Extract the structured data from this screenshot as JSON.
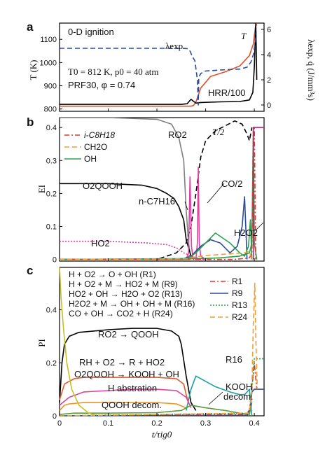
{
  "chart_data": [
    {
      "panel": "a",
      "type": "line",
      "ylabel": "T (K)",
      "ylabel_right": "λexp, q̇ (J/mm³s)",
      "ylim": [
        790,
        1170
      ],
      "y2lim": [
        -0.5,
        6.5
      ],
      "xlim": [
        0,
        0.42
      ],
      "yticks": [
        "800",
        "900",
        "1000",
        "1100"
      ],
      "y2ticks": [
        "0",
        "2",
        "4",
        "6"
      ],
      "annotations": {
        "title_note": "0-D ignition",
        "cond1": "T0 = 812 K, p0 = 40 atm",
        "cond2": "PRF30, φ = 0.74",
        "lambda": "λexp",
        "T": "T",
        "hrr": "HRR/100"
      },
      "series": [
        {
          "key": "T",
          "color": "#e0522a",
          "style": "solid",
          "axis": "left",
          "x": [
            0,
            0.24,
            0.27,
            0.275,
            0.28,
            0.29,
            0.31,
            0.34,
            0.37,
            0.39,
            0.398,
            0.402,
            0.405
          ],
          "y": [
            812,
            812,
            812,
            815,
            830,
            890,
            940,
            960,
            985,
            1030,
            1080,
            1150,
            1170
          ]
        },
        {
          "key": "HRR/100",
          "color": "#000000",
          "style": "solid",
          "axis": "right",
          "x": [
            0,
            0.25,
            0.262,
            0.27,
            0.275,
            0.28,
            0.29,
            0.33,
            0.37,
            0.39,
            0.397,
            0.4,
            0.403,
            0.405
          ],
          "y": [
            0.05,
            0.05,
            0.1,
            0.45,
            0.3,
            0.15,
            0.2,
            0.25,
            0.28,
            0.4,
            1.0,
            3.0,
            6.5,
            2.0
          ]
        },
        {
          "key": "λexp",
          "color": "#2b4b9b",
          "style": "dashed",
          "axis": "right",
          "x": [
            0,
            0.25,
            0.262,
            0.266,
            0.269,
            0.272,
            0.278,
            0.283,
            0.285,
            0.286,
            0.29,
            0.3,
            0.34,
            0.37,
            0.385,
            0.393,
            0.398,
            0.402,
            0.404
          ],
          "y": [
            4.5,
            4.5,
            4.48,
            4.4,
            4.2,
            3.9,
            3.5,
            2.0,
            0.0,
            2.2,
            2.5,
            2.7,
            2.8,
            2.85,
            3.0,
            3.4,
            4.0,
            5.0,
            5.8
          ]
        }
      ]
    },
    {
      "panel": "b",
      "type": "line",
      "ylabel": "EI",
      "ylim": [
        -0.005,
        0.43
      ],
      "xlim": [
        0,
        0.42
      ],
      "yticks": [
        "0",
        "0.1",
        "0.2",
        "0.3",
        "0.4"
      ],
      "legend": [
        "i-C8H18",
        "CH2O",
        "OH"
      ],
      "annotations": {
        "ro2": "RO2",
        "t2": "T/2",
        "o2qooh": "O2QOOH",
        "co2": "CO/2",
        "nc7": "n-C7H16",
        "h2o2": "H2O2",
        "ho2": "HO2"
      },
      "series": [
        {
          "key": "RO2",
          "color": "#808080",
          "style": "solid",
          "x": [
            0,
            0.1,
            0.2,
            0.23,
            0.245,
            0.255,
            0.26,
            0.265,
            0.27
          ],
          "y": [
            0.43,
            0.43,
            0.425,
            0.41,
            0.37,
            0.3,
            0.15,
            0.05,
            0.0
          ]
        },
        {
          "key": "O2QOOH",
          "color": "#000000",
          "style": "solid",
          "x": [
            0,
            0.1,
            0.17,
            0.2,
            0.22,
            0.235,
            0.245,
            0.255,
            0.26,
            0.27,
            0.28
          ],
          "y": [
            0.23,
            0.23,
            0.225,
            0.215,
            0.2,
            0.185,
            0.16,
            0.12,
            0.06,
            0.01,
            0.0
          ]
        },
        {
          "key": "T/2",
          "color": "#000000",
          "style": "dashed",
          "x": [
            0,
            0.2,
            0.24,
            0.26,
            0.27,
            0.28,
            0.29,
            0.3,
            0.32,
            0.34,
            0.36,
            0.375,
            0.385,
            0.39,
            0.395
          ],
          "y": [
            0,
            0,
            0.02,
            0.05,
            0.1,
            0.2,
            0.31,
            0.36,
            0.39,
            0.405,
            0.42,
            0.41,
            0.38,
            0.36,
            0.4
          ]
        },
        {
          "key": "HO2",
          "color": "#e040a0",
          "style": "dotted",
          "x": [
            0,
            0.1,
            0.18,
            0.22,
            0.24,
            0.255,
            0.27,
            0.285,
            0.3
          ],
          "y": [
            0.055,
            0.055,
            0.05,
            0.045,
            0.035,
            0.02,
            0.01,
            0.003,
            0
          ]
        },
        {
          "key": "CO/2",
          "color": "#e040a0",
          "style": "solid",
          "x": [
            0,
            0.26,
            0.265,
            0.268,
            0.271,
            0.274,
            0.28,
            0.283,
            0.285,
            0.287,
            0.29,
            0.3
          ],
          "y": [
            0,
            0,
            0.02,
            0.25,
            0.04,
            0.005,
            0,
            0.05,
            0.28,
            0.05,
            0.01,
            0
          ]
        },
        {
          "key": "n-C7H16",
          "color": "#2b4b9b",
          "style": "solid",
          "x": [
            0,
            0.25,
            0.27,
            0.29,
            0.31,
            0.33,
            0.35,
            0.365,
            0.375,
            0.38,
            0.385
          ],
          "y": [
            0,
            0,
            0.01,
            0.04,
            0.06,
            0.05,
            0.02,
            0.04,
            0.1,
            0.19,
            0.0
          ]
        },
        {
          "key": "H2O2",
          "color": "#2aa050",
          "style": "solid",
          "x": [
            0,
            0.26,
            0.28,
            0.3,
            0.32,
            0.35,
            0.37,
            0.38,
            0.388,
            0.392,
            0.395
          ],
          "y": [
            0,
            0,
            0.02,
            0.05,
            0.08,
            0.05,
            0.02,
            0.01,
            0.04,
            0.12,
            0.0
          ]
        },
        {
          "key": "OH",
          "color": "#2aa050",
          "style": "solid",
          "x": [
            0,
            0.3,
            0.33,
            0.37,
            0.39,
            0.395,
            0.398,
            0.4,
            0.405
          ],
          "y": [
            0,
            0.003,
            0.005,
            0.01,
            0.02,
            0.05,
            0.4,
            0.05,
            0
          ]
        },
        {
          "key": "i-C8H18",
          "color": "#e03a2a",
          "style": "dashdot",
          "x": [
            0,
            0.36,
            0.39,
            0.395,
            0.398,
            0.4,
            0.403
          ],
          "y": [
            0,
            0,
            0.005,
            0.02,
            0.4,
            0.4,
            0
          ]
        },
        {
          "key": "CH2O",
          "color": "#f0a030",
          "style": "dashed",
          "x": [
            0,
            0.26,
            0.28,
            0.3,
            0.33,
            0.36,
            0.38,
            0.39,
            0.395
          ],
          "y": [
            0,
            0.002,
            0.008,
            0.012,
            0.015,
            0.018,
            0.02,
            0.025,
            0
          ]
        },
        {
          "key": "step",
          "color": "#c02080",
          "style": "solid",
          "x": [
            0.398,
            0.398,
            0.42
          ],
          "y": [
            0,
            0.4,
            0.4
          ]
        }
      ]
    },
    {
      "panel": "c",
      "type": "line",
      "ylabel": "PI",
      "xlabel": "t/τig0",
      "ylim": [
        0,
        0.56
      ],
      "xlim": [
        0,
        0.42
      ],
      "yticks": [
        "0",
        "0.2",
        "0.4"
      ],
      "xticks": [
        "0",
        "0.1",
        "0.2",
        "0.3",
        "0.4"
      ],
      "xtick_values": [
        0,
        0.1,
        0.2,
        0.3,
        0.4
      ],
      "reactions": [
        "H + O2 → O + OH (R1)",
        "H + O2 + M → HO2 + M (R9)",
        "HO2 + OH → H2O + O2 (R13)",
        "H2O2 + M → OH + OH + M (R16)",
        "CO + OH → CO2 + H (R24)"
      ],
      "legend": [
        "R1",
        "R9",
        "R13",
        "R24"
      ],
      "annotations": {
        "ro2qooh": "RO2 → QOOH",
        "rh": "RH + O2 → R + HO2",
        "o2qooh": "O2QOOH → KOOH + OH",
        "habs": "H abstration",
        "qooh": "QOOH decom.",
        "r16": "R16",
        "kooh1": "KOOH",
        "kooh2": "decom."
      },
      "series": [
        {
          "key": "RO2→QOOH",
          "color": "#000000",
          "style": "solid",
          "x": [
            0,
            0.005,
            0.01,
            0.02,
            0.04,
            0.07,
            0.1,
            0.15,
            0.2,
            0.23,
            0.245,
            0.25,
            0.26,
            0.27,
            0.28
          ],
          "y": [
            0.05,
            0.2,
            0.27,
            0.3,
            0.315,
            0.32,
            0.325,
            0.33,
            0.33,
            0.32,
            0.3,
            0.27,
            0.15,
            0.05,
            0.02
          ]
        },
        {
          "key": "R16",
          "color": "#1aa0a0",
          "style": "solid",
          "x": [
            0.26,
            0.27,
            0.28,
            0.3,
            0.32,
            0.35,
            0.37,
            0.38,
            0.385,
            0.39,
            0.395
          ],
          "y": [
            0.02,
            0.1,
            0.15,
            0.13,
            0.11,
            0.09,
            0.08,
            0.08,
            0.09,
            0.1,
            0.0
          ]
        },
        {
          "key": "RH+O2",
          "color": "#e05a2a",
          "style": "solid",
          "x": [
            0,
            0.01,
            0.03,
            0.05,
            0.1,
            0.15,
            0.2,
            0.24,
            0.255,
            0.26,
            0.265
          ],
          "y": [
            0.06,
            0.12,
            0.14,
            0.145,
            0.145,
            0.145,
            0.145,
            0.14,
            0.12,
            0.08,
            0.05
          ]
        },
        {
          "key": "H abstraction",
          "color": "#e040a0",
          "style": "solid",
          "x": [
            0,
            0.02,
            0.05,
            0.1,
            0.15,
            0.2,
            0.24,
            0.26,
            0.27
          ],
          "y": [
            0.04,
            0.07,
            0.09,
            0.095,
            0.1,
            0.1,
            0.095,
            0.07,
            0.03
          ]
        },
        {
          "key": "QOOH decom.",
          "color": "#f09020",
          "style": "solid",
          "x": [
            0,
            0.01,
            0.02,
            0.05,
            0.1,
            0.2,
            0.24,
            0.26
          ],
          "y": [
            0.02,
            0.04,
            0.045,
            0.05,
            0.05,
            0.05,
            0.045,
            0.03
          ]
        },
        {
          "key": "KOOH decom.",
          "color": "#5a9a3a",
          "style": "solid",
          "x": [
            0,
            0.03,
            0.1,
            0.2,
            0.25,
            0.27,
            0.3,
            0.34,
            0.37,
            0.39,
            0.395
          ],
          "y": [
            0.005,
            0.01,
            0.01,
            0.012,
            0.02,
            0.04,
            0.03,
            0.02,
            0.01,
            0.005,
            0.05
          ]
        },
        {
          "key": "fast initial",
          "color": "#c8c020",
          "style": "solid",
          "x": [
            0,
            0.003,
            0.008,
            0.015,
            0.025,
            0.04,
            0.06,
            0.08
          ],
          "y": [
            0.56,
            0.45,
            0.33,
            0.2,
            0.1,
            0.04,
            0.01,
            0.0
          ]
        },
        {
          "key": "R1",
          "color": "#e03a2a",
          "style": "dashdot",
          "x": [
            0,
            0.38,
            0.39,
            0.395,
            0.4,
            0.405
          ],
          "y": [
            0,
            0.005,
            0.02,
            0.1,
            0.2,
            0.1
          ]
        },
        {
          "key": "R9",
          "color": "#2b4b9b",
          "style": "solid",
          "x": [
            0,
            0.385,
            0.392,
            0.395,
            0.4,
            0.405,
            0.42
          ],
          "y": [
            0,
            0.002,
            0.03,
            0.09,
            0.1,
            0.1,
            0.1
          ]
        },
        {
          "key": "R13",
          "color": "#2aa050",
          "style": "dotted",
          "x": [
            0,
            0.39,
            0.395,
            0.4,
            0.42
          ],
          "y": [
            0,
            0.01,
            0.1,
            0.215,
            0.215
          ]
        },
        {
          "key": "R24",
          "color": "#f0a030",
          "style": "dashed",
          "x": [
            0,
            0.39,
            0.395,
            0.398,
            0.401,
            0.403,
            0.406
          ],
          "y": [
            0,
            0.01,
            0.1,
            0.35,
            0.5,
            0.3,
            0.1
          ]
        }
      ]
    }
  ]
}
